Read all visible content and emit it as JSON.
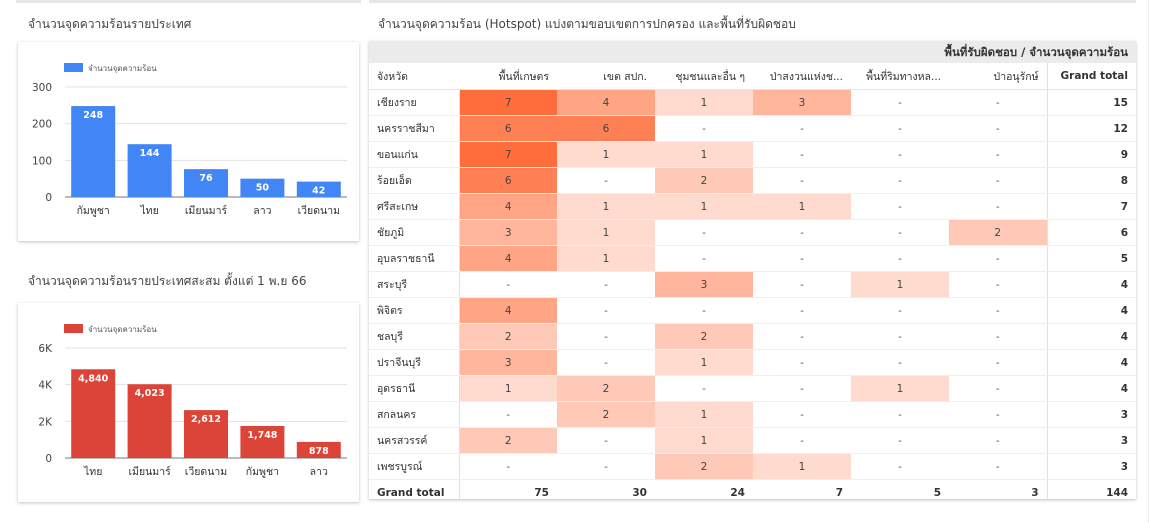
{
  "titles": {
    "left_top": "จำนวนจุดความร้อนรายประเทศ",
    "left_bottom": "จำนวนจุดความร้อนรายประเทศสะสม ตั้งแต่ 1 พ.ย 66",
    "table": "จำนวนจุดความร้อน (Hotspot) แบ่งตามขอบเขตการปกครอง และพื้นที่รับผิดชอบ"
  },
  "chart_data": [
    {
      "type": "bar",
      "legend": "จำนวนจุดความร้อน",
      "color": "#4285f4",
      "categories": [
        "กัมพูชา",
        "ไทย",
        "เมียนมาร์",
        "ลาว",
        "เวียดนาม"
      ],
      "values": [
        248,
        144,
        76,
        50,
        42
      ],
      "value_labels": [
        "248",
        "144",
        "76",
        "50",
        "42"
      ],
      "ylim": [
        0,
        300
      ],
      "yticks": [
        0,
        100,
        200,
        300
      ],
      "ytick_labels": [
        "0",
        "100",
        "200",
        "300"
      ]
    },
    {
      "type": "bar",
      "legend": "จำนวนจุดความร้อน",
      "color": "#db4437",
      "categories": [
        "ไทย",
        "เมียนมาร์",
        "เวียดนาม",
        "กัมพูชา",
        "ลาว"
      ],
      "values": [
        4840,
        4023,
        2612,
        1748,
        878
      ],
      "value_labels": [
        "4,840",
        "4,023",
        "2,612",
        "1,748",
        "878"
      ],
      "ylim": [
        0,
        6000
      ],
      "yticks": [
        0,
        2000,
        4000,
        6000
      ],
      "ytick_labels": [
        "0",
        "2K",
        "4K",
        "6K"
      ]
    },
    {
      "type": "table",
      "header_title": "พื้นที่รับผิดชอบ / จำนวนจุดความร้อน",
      "row_header": "จังหวัด",
      "columns": [
        "พื้นที่เกษตร",
        "เขต สปก.",
        "ชุมชนและอื่น ๆ",
        "ป่าสงวนแห่งช...",
        "พื้นที่ริมทางหล...",
        "ป่าอนุรักษ์"
      ],
      "total_header": "Grand total",
      "heat_color": "#ff6d3c",
      "max_value": 7,
      "rows": [
        {
          "name": "เชียงราย",
          "values": [
            7,
            4,
            1,
            3,
            null,
            null
          ],
          "total": 15
        },
        {
          "name": "นครราชสีมา",
          "values": [
            6,
            6,
            null,
            null,
            null,
            null
          ],
          "total": 12
        },
        {
          "name": "ขอนแก่น",
          "values": [
            7,
            1,
            1,
            null,
            null,
            null
          ],
          "total": 9
        },
        {
          "name": "ร้อยเอ็ด",
          "values": [
            6,
            null,
            2,
            null,
            null,
            null
          ],
          "total": 8
        },
        {
          "name": "ศรีสะเกษ",
          "values": [
            4,
            1,
            1,
            1,
            null,
            null
          ],
          "total": 7
        },
        {
          "name": "ชัยภูมิ",
          "values": [
            3,
            1,
            null,
            null,
            null,
            2
          ],
          "total": 6
        },
        {
          "name": "อุบลราชธานี",
          "values": [
            4,
            1,
            null,
            null,
            null,
            null
          ],
          "total": 5
        },
        {
          "name": "สระบุรี",
          "values": [
            null,
            null,
            3,
            null,
            1,
            null
          ],
          "total": 4
        },
        {
          "name": "พิจิตร",
          "values": [
            4,
            null,
            null,
            null,
            null,
            null
          ],
          "total": 4
        },
        {
          "name": "ชลบุรี",
          "values": [
            2,
            null,
            2,
            null,
            null,
            null
          ],
          "total": 4
        },
        {
          "name": "ปราจีนบุรี",
          "values": [
            3,
            null,
            1,
            null,
            null,
            null
          ],
          "total": 4
        },
        {
          "name": "อุดรธานี",
          "values": [
            1,
            2,
            null,
            null,
            1,
            null
          ],
          "total": 4
        },
        {
          "name": "สกลนคร",
          "values": [
            null,
            2,
            1,
            null,
            null,
            null
          ],
          "total": 3
        },
        {
          "name": "นครสวรรค์",
          "values": [
            2,
            null,
            1,
            null,
            null,
            null
          ],
          "total": 3
        },
        {
          "name": "เพชรบูรณ์",
          "values": [
            null,
            null,
            2,
            1,
            null,
            null
          ],
          "total": 3
        }
      ],
      "empty_symbol": "-",
      "grand_total_label": "Grand total",
      "column_totals": [
        75,
        30,
        24,
        7,
        5,
        3
      ],
      "grand_total": 144
    }
  ]
}
